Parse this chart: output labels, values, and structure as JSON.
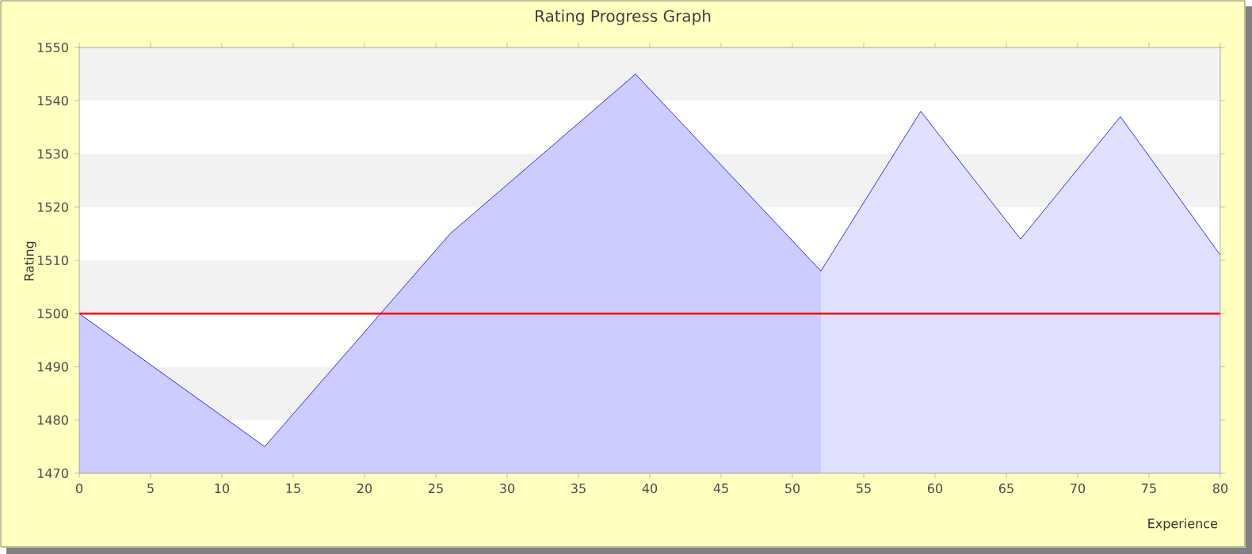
{
  "chart_data": {
    "type": "area",
    "title": "Rating Progress Graph",
    "xlabel": "Experience",
    "ylabel": "Rating",
    "series": [
      {
        "color": "#ccccff",
        "x": [
          0,
          13,
          26,
          39,
          52
        ],
        "values": [
          1500,
          1475,
          1515,
          1545,
          1508
        ]
      },
      {
        "color": "#e0e0ff",
        "x": [
          52,
          59,
          66,
          73,
          80
        ],
        "values": [
          1508,
          1538,
          1514,
          1537,
          1511
        ]
      },
      {
        "type": "line",
        "color": "#0000ff",
        "x": [
          0,
          13,
          26,
          39,
          52,
          59,
          66,
          73,
          80
        ],
        "values": [
          1500,
          1475,
          1515,
          1545,
          1508,
          1538,
          1514,
          1537,
          1511
        ]
      }
    ],
    "xlim": [
      0,
      80
    ],
    "ylim": [
      1470,
      1550
    ],
    "xticks": [
      0,
      5,
      10,
      15,
      20,
      25,
      30,
      35,
      40,
      45,
      50,
      55,
      60,
      65,
      70,
      75,
      80
    ],
    "yticks": [
      1470,
      1480,
      1490,
      1500,
      1510,
      1520,
      1530,
      1540,
      1550
    ],
    "ref_lines": [
      {
        "axis": "y",
        "value": 1500,
        "color": "#ff0000"
      }
    ],
    "grid": "y",
    "marker": "none"
  }
}
